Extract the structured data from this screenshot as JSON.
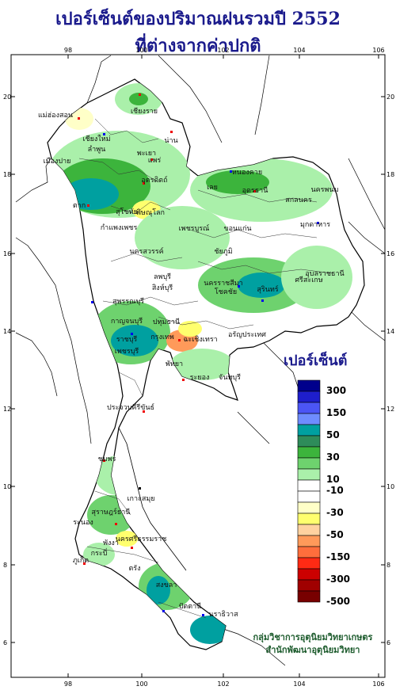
{
  "title_line1": "เปอร์เซ็นต์ของปริมาณฝนรวมปี  2552",
  "title_line2": "ที่ต่างจากค่าปกติ",
  "lon_ticks": [
    "98",
    "100",
    "102",
    "104",
    "106"
  ],
  "lat_ticks": [
    "20",
    "18",
    "16",
    "14",
    "12",
    "10",
    "8",
    "6"
  ],
  "legend": {
    "title": "เปอร์เซ็นต์",
    "labels": [
      "300",
      "150",
      "50",
      "30",
      "10",
      "-10",
      "-30",
      "-50",
      "-150",
      "-300",
      "-500"
    ],
    "colors": [
      "#00008c",
      "#1e1ecc",
      "#4b55f5",
      "#6e8cff",
      "#00a0a0",
      "#2e8c5a",
      "#3cb43c",
      "#6ed26e",
      "#aaf0aa",
      "#ffffff",
      "#ffffff",
      "#ffffc8",
      "#ffff6e",
      "#ffd2a0",
      "#ff9a5a",
      "#ff6e3c",
      "#ff2a14",
      "#cc0000",
      "#a00000",
      "#780000"
    ]
  },
  "provinces": [
    "เชียงราย",
    "แม่ฮ่องสอน",
    "เชียงใหม่",
    "ลำพูน",
    "พะเยา",
    "น่าน",
    "เมืองปาย",
    "แพร่",
    "อุตรดิตถ์",
    "ตาก",
    "สุโขทัย",
    "พิษณุโลก",
    "กำแพงเพชร",
    "หนองคาย",
    "อุดรธานี",
    "เลย",
    "นครพนม",
    "สกลนคร",
    "มุกดาหาร",
    "ขอนแก่น",
    "เพชรบูรณ์",
    "นครสวรรค์",
    "ชัยภูมิ",
    "อุบลราชธานี",
    "สุรินทร์",
    "ศรีสะเกษ",
    "นครราชสีมา",
    "โชคชัย",
    "ลพบุรี",
    "สิงห์บุรี",
    "สุพรรณบุรี",
    "กาญจนบุรี",
    "ปทุมธานี",
    "ราชบุรี",
    "กรุงเทพ",
    "ฉะเชิงเทรา",
    "อรัญประเทศ",
    "เพชรบุรี",
    "พัทยา",
    "ระยอง",
    "จันทบุรี",
    "ประจวบคีรีขันธ์",
    "ชุมพร",
    "เกาะสมุย",
    "สุราษฎร์ธานี",
    "ระนอง",
    "นครศรีธรรมราช",
    "พังงา",
    "กระบี่",
    "ภูเก็ต",
    "ตรัง",
    "สงขลา",
    "ปัตตานี",
    "นราธิวาส"
  ],
  "credit_line1": "กลุ่มวิชาการอุตุนิยมวิทยาเกษตร",
  "credit_line2": "สำนักพัฒนาอุตุนิยมวิทยา"
}
